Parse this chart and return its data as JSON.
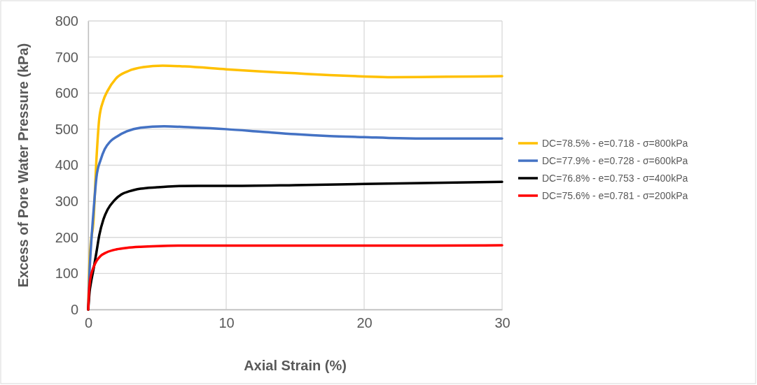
{
  "chart_data": {
    "type": "line",
    "xlabel": "Axial Strain (%)",
    "ylabel": "Excess of Pore Water Pressure (kPa)",
    "xlim": [
      0,
      30
    ],
    "xticks": [
      0,
      10,
      20,
      30
    ],
    "ylim": [
      0,
      800
    ],
    "yticks": [
      0,
      100,
      200,
      300,
      400,
      500,
      600,
      700,
      800
    ],
    "grid": true,
    "legend": "right",
    "marker": "none",
    "line_style": "solid",
    "series": [
      {
        "name": "DC=78.5% - e=0.718 - σ=800kPa",
        "color": "#ffc000",
        "x": [
          0,
          0.05,
          0.1,
          0.2,
          0.37,
          0.6,
          0.8,
          1.1,
          1.4,
          2,
          2.9,
          4,
          5.4,
          7,
          10,
          12.5,
          15,
          17.5,
          20,
          22,
          25,
          28,
          30
        ],
        "values": [
          0,
          90,
          140,
          190,
          240,
          420,
          530,
          580,
          606,
          640,
          661,
          672,
          676,
          674,
          666,
          660,
          655,
          650,
          646,
          644,
          645,
          646,
          647
        ]
      },
      {
        "name": "DC=77.9% - e=0.728 - σ=600kPa",
        "color": "#4472c4",
        "x": [
          0,
          0.05,
          0.1,
          0.2,
          0.4,
          0.6,
          0.9,
          1.2,
          1.6,
          2.1,
          2.8,
          3.8,
          5.5,
          7.5,
          10,
          12.5,
          15,
          17.5,
          20,
          22.5,
          25,
          27.5,
          30
        ],
        "values": [
          0,
          60,
          110,
          175,
          280,
          368,
          415,
          445,
          466,
          480,
          494,
          504,
          508,
          505,
          500,
          493,
          486,
          481,
          478,
          475,
          474,
          474,
          474
        ]
      },
      {
        "name": "DC=76.8% - e=0.753 - σ=400kPa",
        "color": "#000000",
        "x": [
          0,
          0.1,
          0.2,
          0.37,
          0.6,
          0.8,
          1.1,
          1.4,
          1.9,
          2.4,
          3,
          3.8,
          5,
          6.3,
          8,
          10,
          15,
          20,
          25,
          30
        ],
        "values": [
          0,
          50,
          75,
          109,
          160,
          206,
          250,
          277,
          303,
          319,
          328,
          335,
          339,
          342,
          343,
          343,
          345,
          348,
          351,
          354
        ]
      },
      {
        "name": "DC=75.6% - e=0.781 - σ=200kPa",
        "color": "#ff0000",
        "x": [
          0,
          0.05,
          0.12,
          0.2,
          0.37,
          0.6,
          0.88,
          1.3,
          2.07,
          2.8,
          3.8,
          5,
          6.5,
          10,
          15,
          20,
          25,
          30
        ],
        "values": [
          0,
          45,
          77,
          95,
          116,
          135,
          148,
          158,
          167,
          171,
          174,
          176,
          177,
          177,
          177,
          177,
          177,
          178
        ]
      }
    ]
  }
}
